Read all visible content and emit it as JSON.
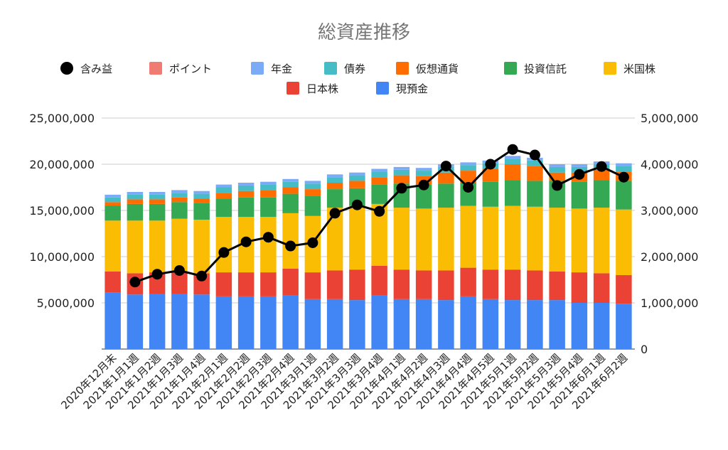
{
  "chart_data": {
    "type": "bar",
    "stacked": true,
    "title": "総資産推移",
    "categories": [
      "2020年12月末",
      "2021年1月1週",
      "2021年1月2週",
      "2021年1月3週",
      "2021年1月4週",
      "2021年2月1週",
      "2021年2月2週",
      "2021年2月3週",
      "2021年2月4週",
      "2021年3月1週",
      "2021年3月2週",
      "2021年3月3週",
      "2021年3月4週",
      "2021年4月1週",
      "2021年4月2週",
      "2021年4月3週",
      "2021年4月4週",
      "2021年4月5週",
      "2021年5月1週",
      "2021年5月2週",
      "2021年5月3週",
      "2021年5月4週",
      "2021年6月1週",
      "2021年6月2週"
    ],
    "series": [
      {
        "name": "現預金",
        "color": "#4285F4",
        "values": [
          6100000,
          5900000,
          6000000,
          6000000,
          5900000,
          5700000,
          5700000,
          5700000,
          5800000,
          5400000,
          5400000,
          5300000,
          5800000,
          5400000,
          5400000,
          5300000,
          5700000,
          5400000,
          5300000,
          5300000,
          5300000,
          5000000,
          5000000,
          4900000
        ]
      },
      {
        "name": "日本株",
        "color": "#EA4335",
        "values": [
          2300000,
          2300000,
          2300000,
          2400000,
          2300000,
          2600000,
          2600000,
          2600000,
          2900000,
          2900000,
          3100000,
          3300000,
          3200000,
          3200000,
          3100000,
          3200000,
          3100000,
          3200000,
          3300000,
          3200000,
          3100000,
          3300000,
          3200000,
          3100000
        ]
      },
      {
        "name": "米国株",
        "color": "#FBBC04",
        "values": [
          5500000,
          5700000,
          5600000,
          5700000,
          5800000,
          6000000,
          6000000,
          6000000,
          6000000,
          6100000,
          6800000,
          6900000,
          6700000,
          6700000,
          6700000,
          6800000,
          6700000,
          6800000,
          6900000,
          6900000,
          6900000,
          6900000,
          7100000,
          7100000
        ]
      },
      {
        "name": "投資信託",
        "color": "#34A853",
        "values": [
          1600000,
          1800000,
          1800000,
          1800000,
          1800000,
          2000000,
          2100000,
          2100000,
          2100000,
          2200000,
          2000000,
          1900000,
          2100000,
          2600000,
          2600000,
          2600000,
          2500000,
          2700000,
          2800000,
          2800000,
          2900000,
          2900000,
          3000000,
          3100000
        ]
      },
      {
        "name": "仮想通貨",
        "color": "#FF6D01",
        "values": [
          400000,
          500000,
          500000,
          500000,
          500000,
          600000,
          700000,
          800000,
          700000,
          700000,
          700000,
          800000,
          800000,
          900000,
          900000,
          1200000,
          1300000,
          1400000,
          1700000,
          1600000,
          900000,
          1000000,
          1100000,
          1000000
        ]
      },
      {
        "name": "債券",
        "color": "#46BDC6",
        "values": [
          500000,
          500000,
          500000,
          500000,
          500000,
          600000,
          600000,
          600000,
          600000,
          600000,
          600000,
          600000,
          600000,
          600000,
          600000,
          600000,
          600000,
          600000,
          600000,
          600000,
          600000,
          600000,
          600000,
          600000
        ]
      },
      {
        "name": "年金",
        "color": "#7BAAF7",
        "values": [
          300000,
          300000,
          300000,
          300000,
          300000,
          300000,
          300000,
          300000,
          300000,
          300000,
          300000,
          300000,
          300000,
          300000,
          300000,
          300000,
          300000,
          300000,
          300000,
          300000,
          300000,
          300000,
          300000,
          300000
        ]
      },
      {
        "name": "ポイント",
        "color": "#F07B72",
        "values": [
          0,
          0,
          0,
          0,
          0,
          0,
          0,
          0,
          0,
          0,
          0,
          0,
          0,
          0,
          0,
          0,
          0,
          0,
          0,
          0,
          0,
          0,
          0,
          0
        ]
      }
    ],
    "line_series": {
      "name": "含み益",
      "color": "#000000",
      "axis": "right",
      "values": [
        null,
        1450000,
        1620000,
        1700000,
        1580000,
        2090000,
        2320000,
        2420000,
        2230000,
        2300000,
        2940000,
        3120000,
        2980000,
        3480000,
        3550000,
        3960000,
        3500000,
        4000000,
        4320000,
        4200000,
        3540000,
        3780000,
        3950000,
        3720000
      ]
    },
    "y_left": {
      "min": 0,
      "max": 25000000,
      "ticks": [
        "",
        "5,000,000",
        "10,000,000",
        "15,000,000",
        "20,000,000",
        "25,000,000"
      ]
    },
    "y_right": {
      "min": 0,
      "max": 5000000,
      "ticks": [
        "0",
        "1,000,000",
        "2,000,000",
        "3,000,000",
        "4,000,000",
        "5,000,000"
      ]
    },
    "legend_position": "top",
    "grid": true
  }
}
